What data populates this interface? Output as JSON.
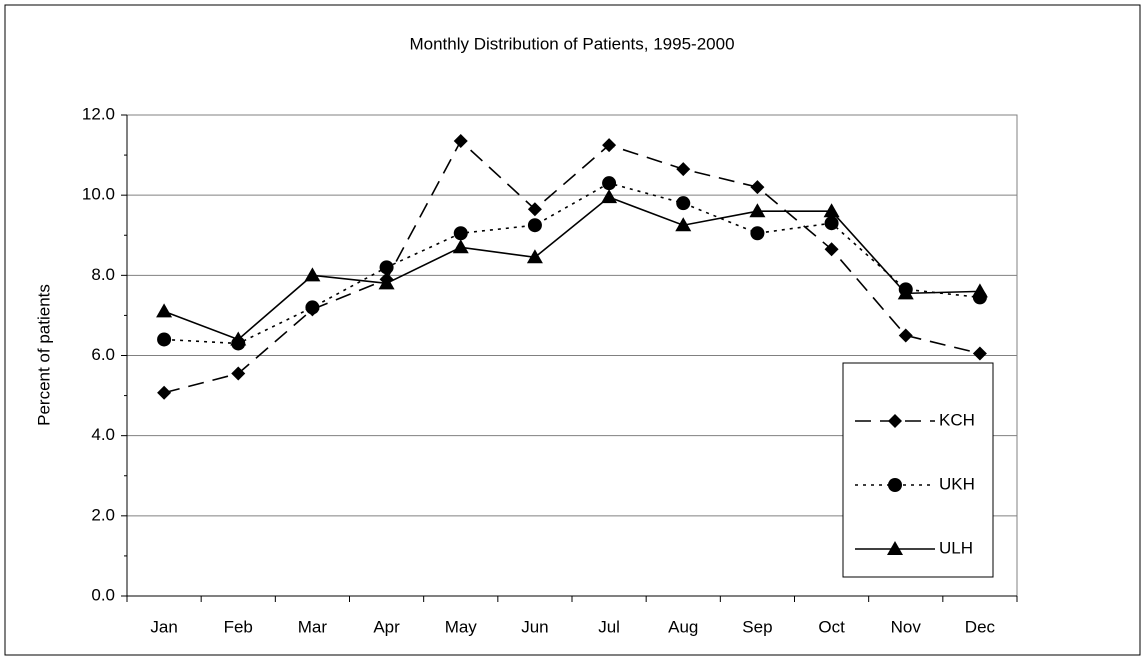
{
  "chart_data": {
    "type": "line",
    "title": "Monthly Distribution of Patients, 1995-2000",
    "y_label": "Percent of patients",
    "categories": [
      "Jan",
      "Feb",
      "Mar",
      "Apr",
      "May",
      "Jun",
      "Jul",
      "Aug",
      "Sep",
      "Oct",
      "Nov",
      "Dec"
    ],
    "series": [
      {
        "name": "KCH",
        "color": "#000000",
        "marker": "diamond",
        "line_style": "dashed",
        "values": [
          5.07,
          5.55,
          7.15,
          7.9,
          11.35,
          9.65,
          11.25,
          10.65,
          10.2,
          8.65,
          6.5,
          6.05
        ]
      },
      {
        "name": "UKH",
        "color": "#000000",
        "marker": "circle",
        "line_style": "dotted",
        "values": [
          6.4,
          6.3,
          7.2,
          8.2,
          9.05,
          9.25,
          10.3,
          9.8,
          9.05,
          9.3,
          7.65,
          7.45
        ]
      },
      {
        "name": "ULH",
        "color": "#000000",
        "marker": "triangle",
        "line_style": "solid",
        "values": [
          7.1,
          6.4,
          8.0,
          7.8,
          8.7,
          8.45,
          9.95,
          9.25,
          9.6,
          9.6,
          7.55,
          7.6
        ]
      }
    ],
    "ylim": [
      0,
      12
    ],
    "yticks": [
      {
        "value": 0,
        "label": "0.0"
      },
      {
        "value": 2,
        "label": "2.0"
      },
      {
        "value": 4,
        "label": "4.0"
      },
      {
        "value": 6,
        "label": "6.0"
      },
      {
        "value": 8,
        "label": "8.0"
      },
      {
        "value": 10,
        "label": "10.0"
      },
      {
        "value": 12,
        "label": "12.0"
      }
    ],
    "grid": true,
    "legend": "right"
  }
}
